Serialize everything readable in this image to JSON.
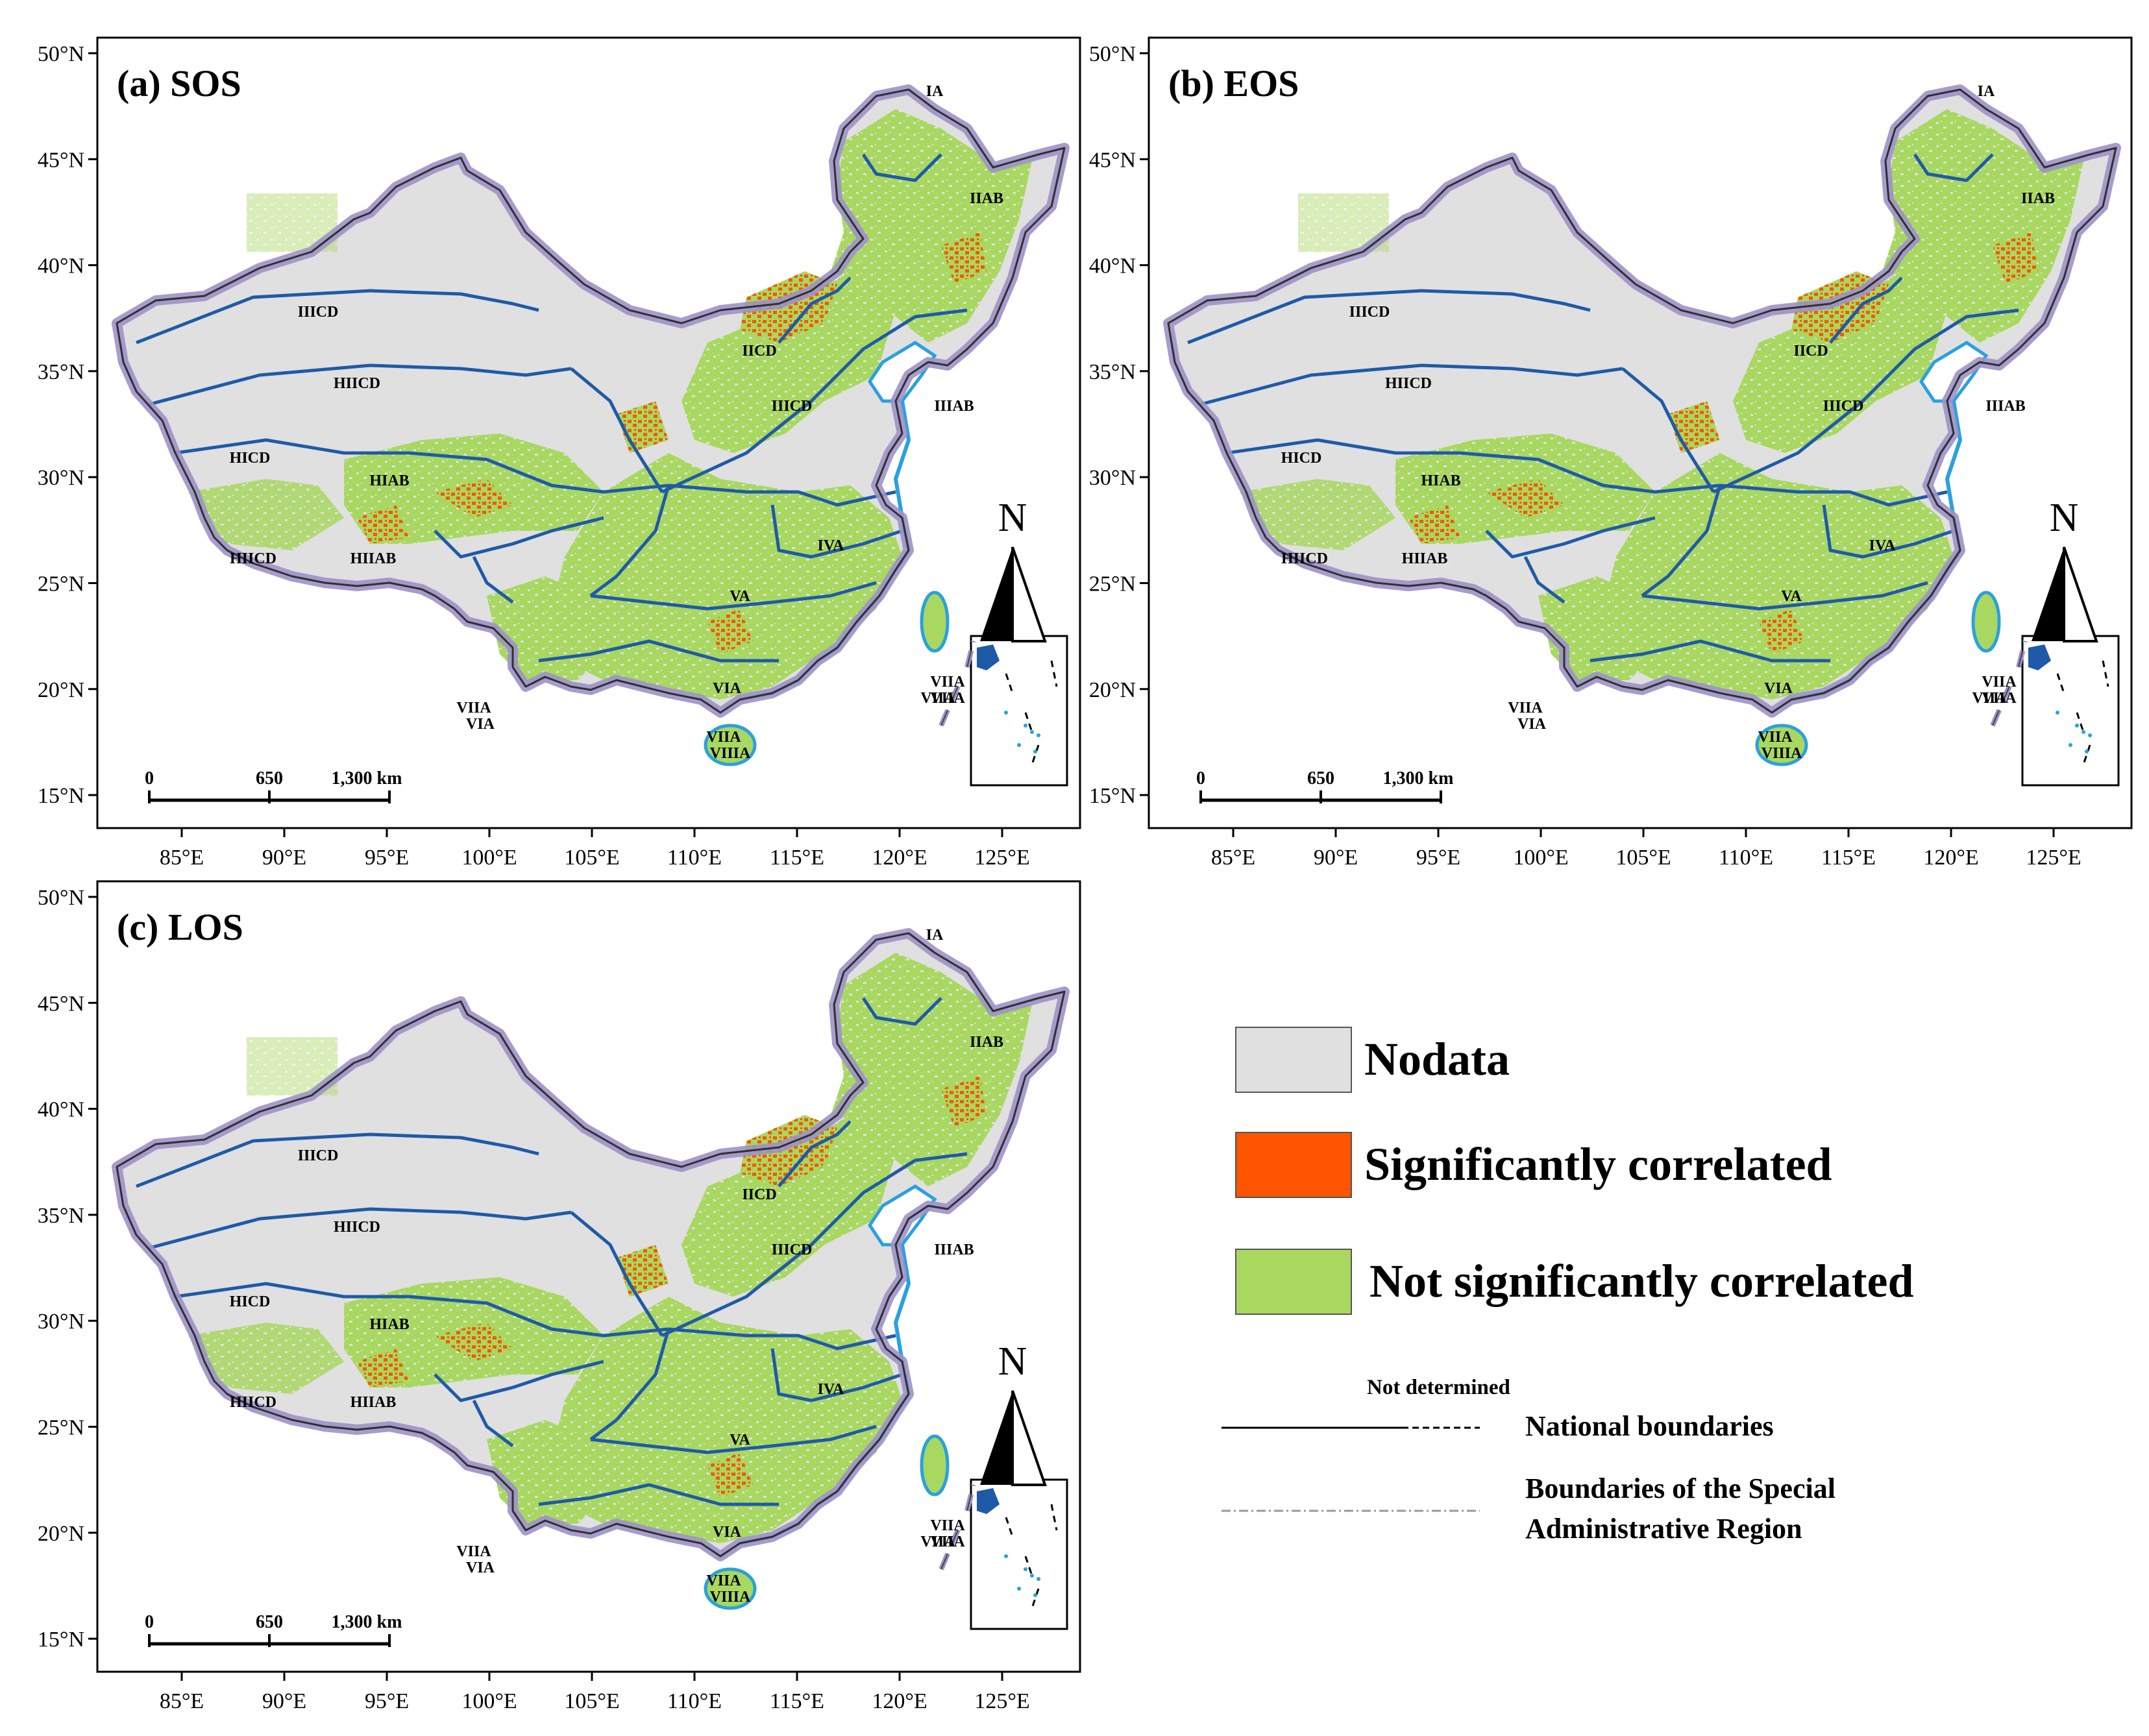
{
  "colors": {
    "nodata": "#e0e0e0",
    "significant": "#ff5500",
    "not_significant": "#a8d860",
    "zone_line": "#1f5aa8",
    "border_glow": "#9c92c8",
    "water": "#2aa0e0"
  },
  "panels": [
    {
      "title": "(a) SOS",
      "lat_ticks": [
        "50°N",
        "45°N",
        "40°N",
        "35°N",
        "30°N",
        "25°N",
        "20°N",
        "15°N"
      ],
      "lon_ticks": [
        "85°E",
        "90°E",
        "95°E",
        "100°E",
        "105°E",
        "110°E",
        "115°E",
        "120°E",
        "125°E"
      ],
      "scale_labels": [
        "0",
        "650",
        "1,300 km"
      ],
      "north_label": "N",
      "zones": [
        "IA",
        "IIAB",
        "IICD",
        "IIICD",
        "IIIAB",
        "IIICD",
        "HIICD",
        "HICD",
        "HIAB",
        "HIIAB",
        "HIICD",
        "IVA",
        "VA",
        "VIA",
        "VIIA",
        "VIIA",
        "VIIIA",
        "VIIA",
        "VIIA",
        "VIA",
        "VIIA"
      ]
    },
    {
      "title": "(b) EOS",
      "lat_ticks": [
        "50°N",
        "45°N",
        "40°N",
        "35°N",
        "30°N",
        "25°N",
        "20°N",
        "15°N"
      ],
      "lon_ticks": [
        "85°E",
        "90°E",
        "95°E",
        "100°E",
        "105°E",
        "110°E",
        "115°E",
        "120°E",
        "125°E"
      ],
      "scale_labels": [
        "0",
        "650",
        "1,300 km"
      ],
      "north_label": "N",
      "zones": [
        "IA",
        "IIAB",
        "IICD",
        "IIICD",
        "IIIAB",
        "IIICD",
        "HIICD",
        "HICD",
        "HIAB",
        "HIIAB",
        "HIICD",
        "IVA",
        "VA",
        "VIA",
        "VIIA",
        "VIIA",
        "VIIIA",
        "VIIA",
        "VIIA",
        "VIA",
        "VIIA"
      ]
    },
    {
      "title": "(c) LOS",
      "lat_ticks": [
        "50°N",
        "45°N",
        "40°N",
        "35°N",
        "30°N",
        "25°N",
        "20°N",
        "15°N"
      ],
      "lon_ticks": [
        "85°E",
        "90°E",
        "95°E",
        "100°E",
        "105°E",
        "110°E",
        "115°E",
        "120°E",
        "125°E"
      ],
      "scale_labels": [
        "0",
        "650",
        "1,300 km"
      ],
      "north_label": "N",
      "zones": [
        "IA",
        "IIAB",
        "IICD",
        "IIICD",
        "IIIAB",
        "IIICD",
        "HIICD",
        "HICD",
        "HIAB",
        "HIIAB",
        "HIICD",
        "IVA",
        "VA",
        "VIA",
        "VIIA",
        "VIIA",
        "VIIIA",
        "VIIA",
        "VIIA",
        "VIA",
        "VIIA"
      ]
    }
  ],
  "legend": {
    "nodata": "Nodata",
    "significant": "Significantly correlated",
    "not_significant": "Not significantly correlated",
    "not_determined": "Not determined",
    "national_boundaries": "National boundaries",
    "sar_boundaries_line1": "Boundaries of the Special",
    "sar_boundaries_line2": "Administrative Region"
  }
}
